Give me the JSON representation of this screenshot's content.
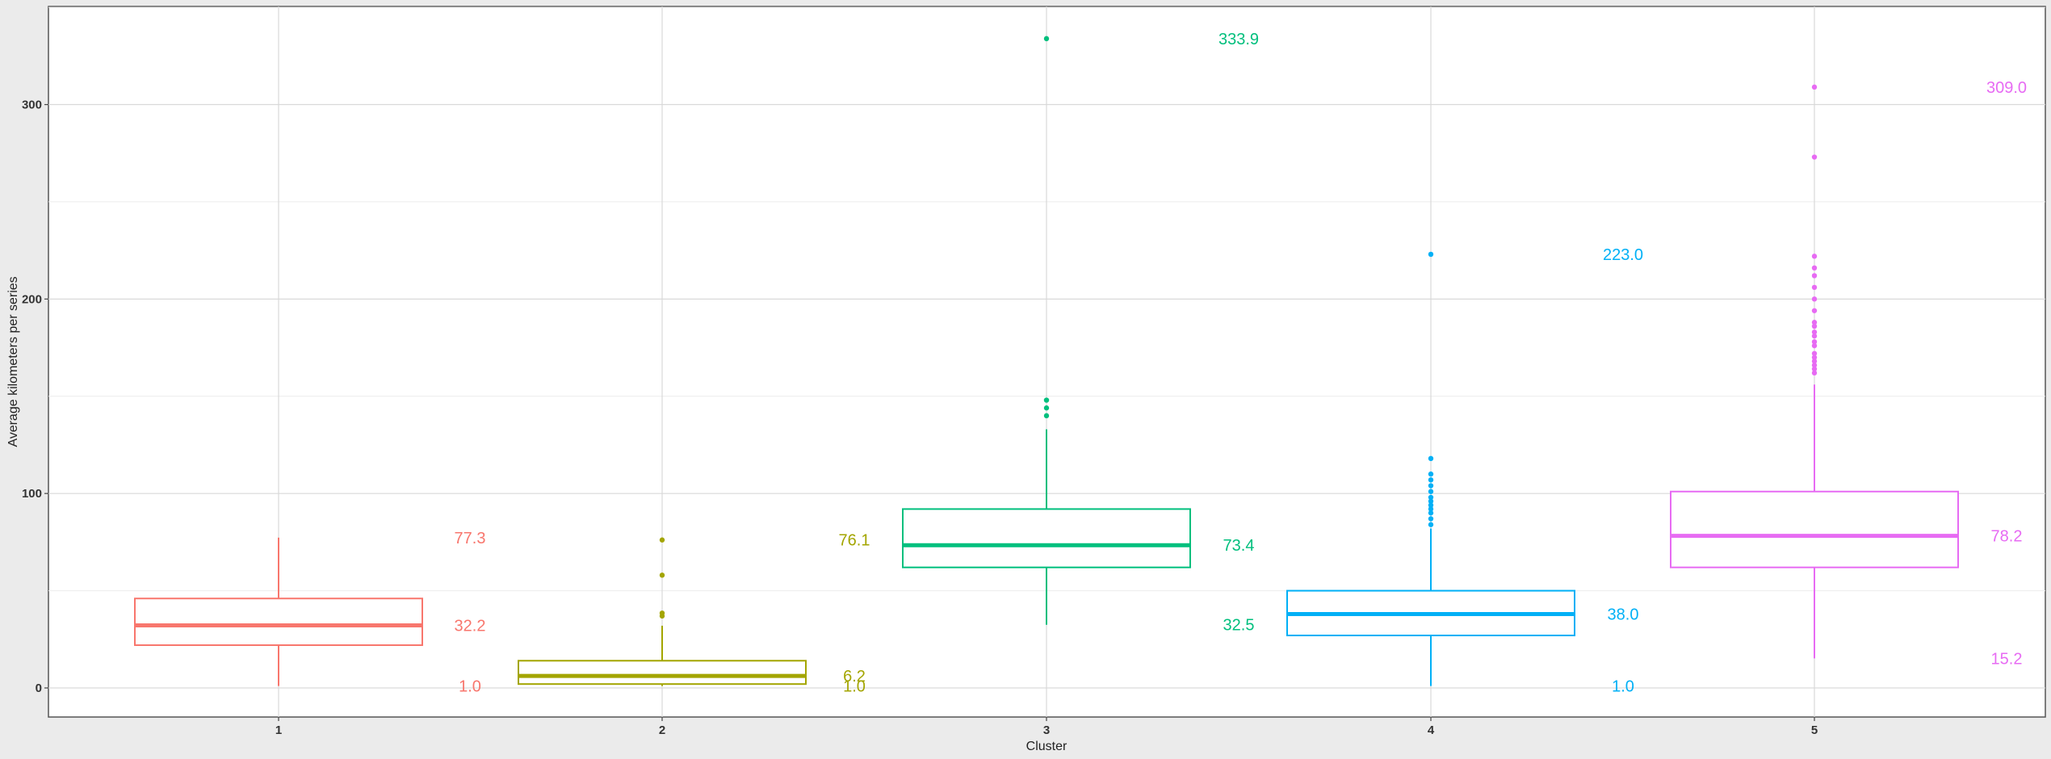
{
  "chart_data": {
    "type": "box",
    "title": "",
    "xlabel": "Cluster",
    "ylabel": "Average kilometers per series",
    "categories": [
      "1",
      "2",
      "3",
      "4",
      "5"
    ],
    "ylim": [
      -15,
      350
    ],
    "yticks": [
      0,
      100,
      200,
      300
    ],
    "ytick_labels": [
      "0",
      "100",
      "200",
      "300"
    ],
    "grid": true,
    "legend": "none",
    "boxes": [
      {
        "category": "1",
        "color": "#F8766D",
        "whisker_low": 1.0,
        "q1": 22,
        "median": 32.2,
        "q3": 46,
        "whisker_high": 77.3,
        "outliers": [],
        "labels": [
          "77.3",
          "32.2",
          "1.0"
        ],
        "label_values": [
          77.3,
          32.2,
          1.0
        ]
      },
      {
        "category": "2",
        "color": "#A3A500",
        "whisker_low": 1.0,
        "q1": 2,
        "median": 6.2,
        "q3": 14,
        "whisker_high": 32,
        "outliers": [
          37,
          38.5,
          58,
          76.1
        ],
        "labels": [
          "76.1",
          "6.2",
          "1.0"
        ],
        "label_values": [
          76.1,
          6.2,
          1.0
        ]
      },
      {
        "category": "3",
        "color": "#00BF7D",
        "whisker_low": 32.5,
        "q1": 62,
        "median": 73.4,
        "q3": 92,
        "whisker_high": 133,
        "outliers": [
          140,
          144,
          148,
          333.9
        ],
        "labels": [
          "333.9",
          "73.4",
          "32.5"
        ],
        "label_values": [
          333.9,
          73.4,
          32.5
        ]
      },
      {
        "category": "4",
        "color": "#00B0F6",
        "whisker_low": 1.0,
        "q1": 27,
        "median": 38.0,
        "q3": 50,
        "whisker_high": 82,
        "outliers": [
          84,
          87,
          90,
          92,
          94,
          96,
          98,
          101,
          104,
          107,
          110,
          118,
          223.0
        ],
        "labels": [
          "223.0",
          "38.0",
          "1.0"
        ],
        "label_values": [
          223.0,
          38.0,
          1.0
        ]
      },
      {
        "category": "5",
        "color": "#E76BF3",
        "whisker_low": 15.2,
        "q1": 62,
        "median": 78.2,
        "q3": 101,
        "whisker_high": 156,
        "outliers": [
          162,
          164,
          166,
          168,
          170,
          172,
          176,
          178,
          181,
          183,
          186,
          188,
          194,
          200,
          206,
          212,
          216,
          222,
          273,
          309.0
        ],
        "labels": [
          "309.0",
          "78.2",
          "15.2"
        ],
        "label_values": [
          309.0,
          78.2,
          15.2
        ]
      }
    ]
  }
}
